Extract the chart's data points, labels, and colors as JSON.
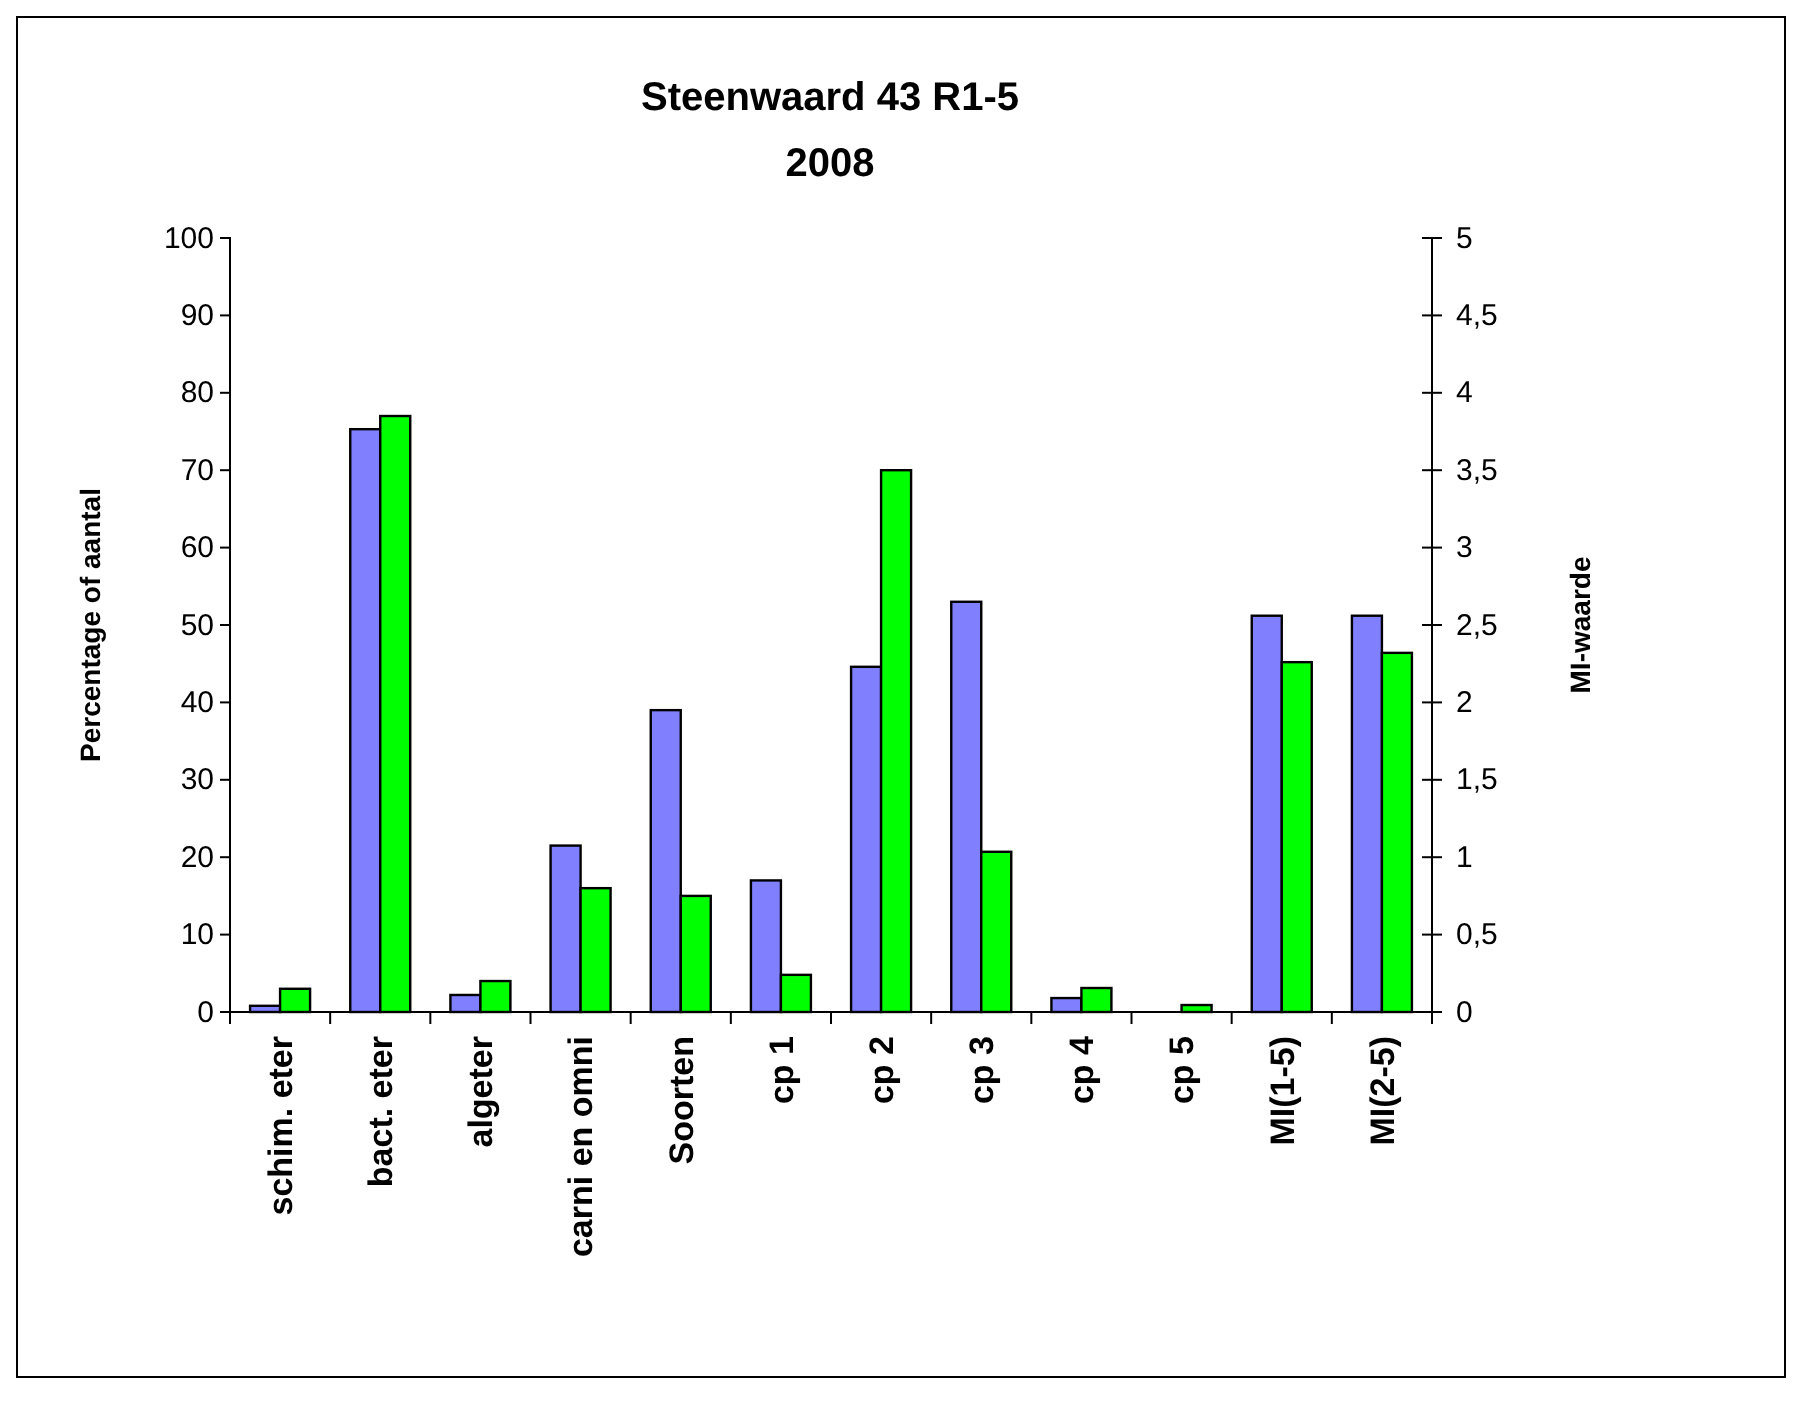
{
  "chart_data": {
    "type": "bar",
    "title": "Steenwaard 43 R1-5\n2008",
    "ylabel": "Percentage of aantal",
    "y2label": "MI-waarde",
    "categories": [
      "schim. eter",
      "bact. eter",
      "algeter",
      "carni en omni",
      "Soorten",
      "cp 1",
      "cp 2",
      "cp 3",
      "cp 4",
      "cp 5",
      "MI(1-5)",
      "MI(2-5)"
    ],
    "series": [
      {
        "color": "#8080ff",
        "values": [
          0.8,
          75.3,
          2.2,
          21.5,
          39,
          17,
          44.6,
          53,
          1.8,
          0,
          null,
          null
        ]
      },
      {
        "color": "#00ff00",
        "values": [
          3,
          77,
          4,
          16,
          15,
          4.8,
          70,
          20.7,
          3.1,
          0.9,
          null,
          null
        ]
      },
      {
        "color": "#8080ff",
        "axis": "y2",
        "values": [
          null,
          null,
          null,
          null,
          null,
          null,
          null,
          null,
          null,
          null,
          2.56,
          2.56
        ]
      },
      {
        "color": "#00ff00",
        "axis": "y2",
        "values": [
          null,
          null,
          null,
          null,
          null,
          null,
          null,
          null,
          null,
          null,
          2.26,
          2.32
        ]
      }
    ],
    "ylim": [
      0,
      100
    ],
    "yticks": [
      0,
      10,
      20,
      30,
      40,
      50,
      60,
      70,
      80,
      90,
      100
    ],
    "y2lim": [
      0,
      5
    ],
    "y2ticks": [
      0,
      {
        "value": 0.5,
        "label": "0,5"
      },
      1,
      {
        "value": 1.5,
        "label": "1,5"
      },
      2,
      {
        "value": 2.5,
        "label": "2,5"
      },
      3,
      {
        "value": 3.5,
        "label": "3,5"
      },
      4,
      {
        "value": 4.5,
        "label": "4,5"
      },
      5
    ],
    "grid": false
  }
}
